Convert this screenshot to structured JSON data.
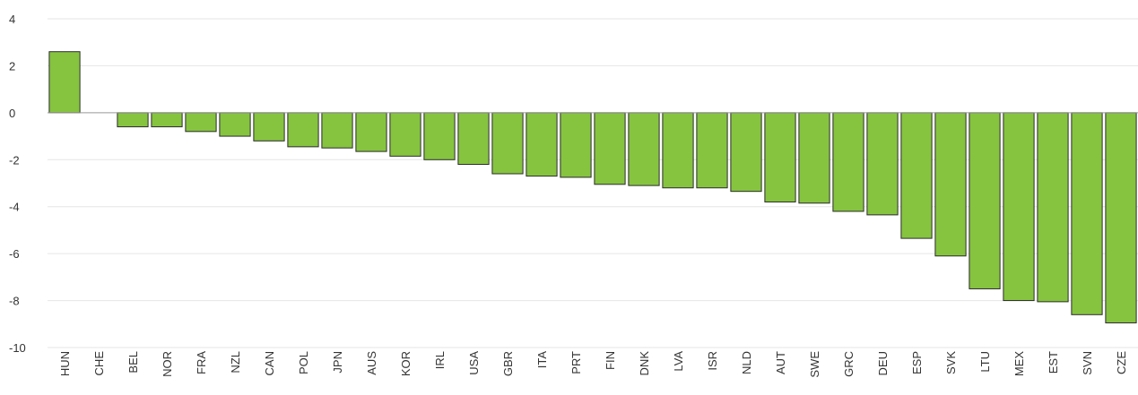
{
  "chart_data": {
    "type": "bar",
    "title": "",
    "xlabel": "",
    "ylabel": "",
    "categories": [
      "HUN",
      "CHE",
      "BEL",
      "NOR",
      "FRA",
      "NZL",
      "CAN",
      "POL",
      "JPN",
      "AUS",
      "KOR",
      "IRL",
      "USA",
      "GBR",
      "ITA",
      "PRT",
      "FIN",
      "DNK",
      "LVA",
      "ISR",
      "NLD",
      "AUT",
      "SWE",
      "GRC",
      "DEU",
      "ESP",
      "SVK",
      "LTU",
      "MEX",
      "EST",
      "SVN",
      "CZE"
    ],
    "values": [
      2.6,
      0.0,
      -0.6,
      -0.6,
      -0.8,
      -1.0,
      -1.2,
      -1.45,
      -1.5,
      -1.65,
      -1.85,
      -2.0,
      -2.2,
      -2.6,
      -2.7,
      -2.75,
      -3.05,
      -3.1,
      -3.2,
      -3.2,
      -3.35,
      -3.8,
      -3.85,
      -4.2,
      -4.35,
      -5.35,
      -6.1,
      -7.5,
      -8.0,
      -8.05,
      -8.6,
      -8.95
    ],
    "ylim": [
      -10,
      4
    ],
    "yticks": [
      4,
      2,
      0,
      -2,
      -4,
      -6,
      -8,
      -10
    ],
    "grid": true,
    "legend": "none",
    "colors": {
      "bar": "#86c440",
      "bar_stroke": "#2b2b2b",
      "grid": "#e6e6e6",
      "axis": "#999999"
    }
  }
}
